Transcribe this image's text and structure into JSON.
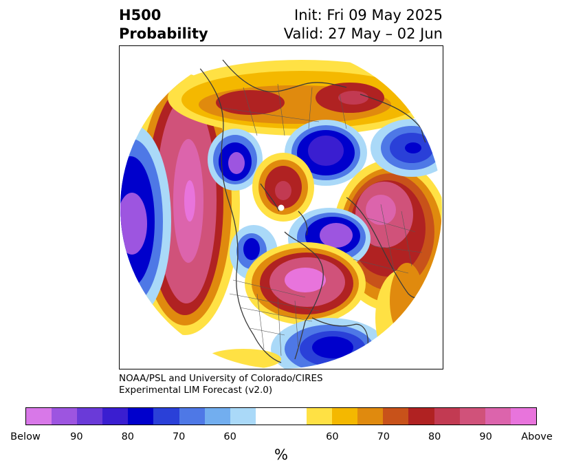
{
  "title": {
    "left_line1": "H500",
    "left_line2": "Probability",
    "right_line1": "Init: Fri 09 May 2025",
    "right_line2": "Valid: 27 May – 02 Jun"
  },
  "credit": {
    "line1": "NOAA/PSL and University of Colorado/CIRES",
    "line2": "Experimental LIM Forecast (v2.0)"
  },
  "colorbar": {
    "unit": "%",
    "colors": [
      "#d878e8",
      "#9d55e0",
      "#6a3ad8",
      "#3a1ed0",
      "#0000cc",
      "#2a40d8",
      "#4e78e6",
      "#72aeef",
      "#aad9f8",
      "#ffffff",
      "#ffe144",
      "#f4b800",
      "#e08a0e",
      "#c8521a",
      "#b02222",
      "#c23a52",
      "#d0527a",
      "#dc64ac",
      "#e874dc"
    ],
    "labels": [
      "Below",
      "90",
      "80",
      "70",
      "60",
      "60",
      "70",
      "80",
      "90",
      "Above"
    ]
  },
  "map_colors": {
    "above_core": "#e874dc",
    "above_high": "#d0527a",
    "above_mid": "#b02222",
    "above_low": "#e08a0e",
    "above_edge": "#ffe144",
    "below_core": "#9d55e0",
    "below_high": "#0000cc",
    "below_mid": "#4e78e6",
    "below_edge": "#aad9f8",
    "coast": "#3a3a3a"
  }
}
